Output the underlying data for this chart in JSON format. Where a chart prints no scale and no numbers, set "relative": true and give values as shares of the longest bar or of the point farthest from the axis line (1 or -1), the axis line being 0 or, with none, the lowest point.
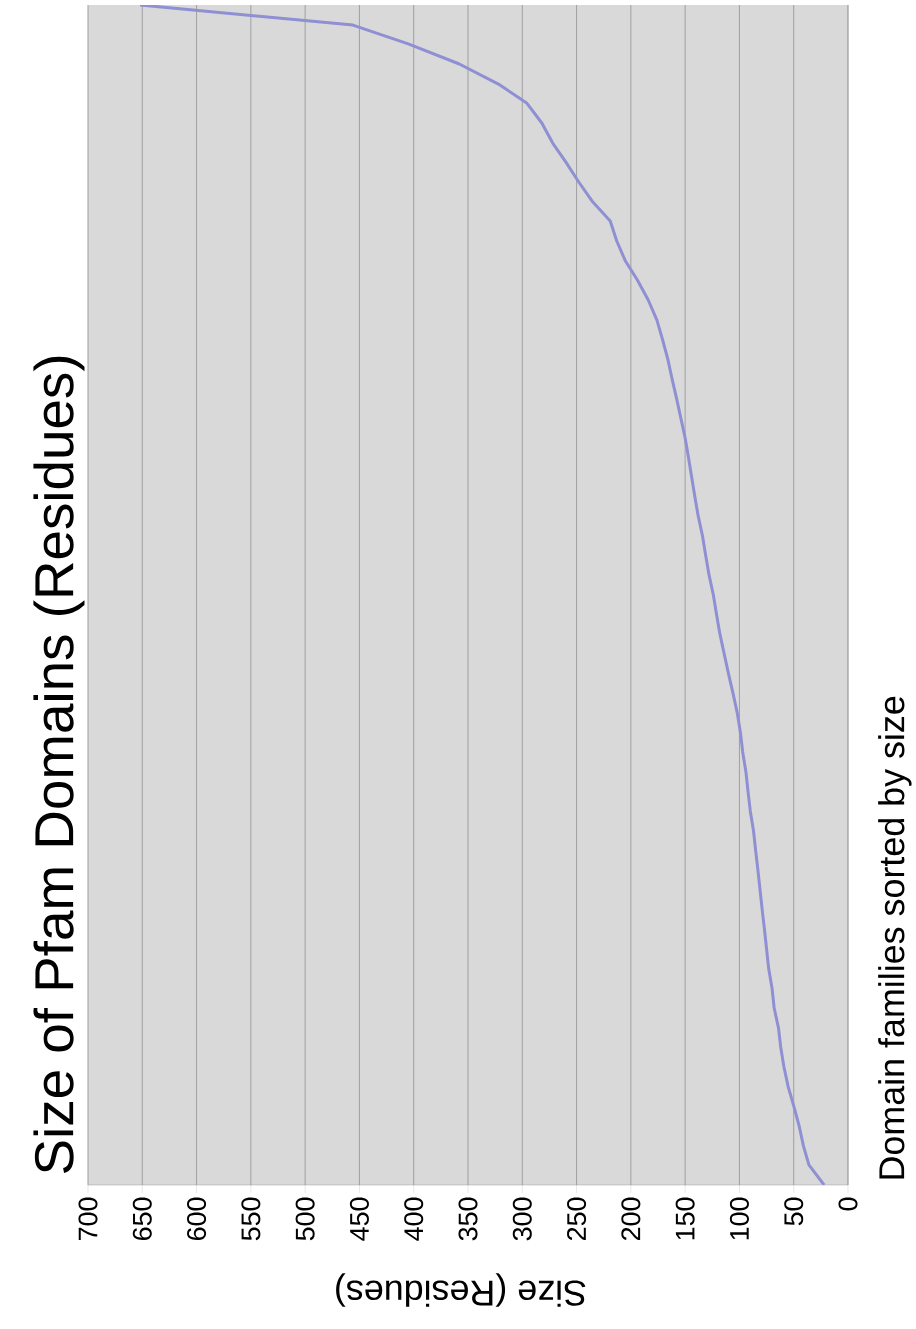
{
  "chart_data": {
    "type": "line",
    "title": "Size of Pfam Domains (Residues)",
    "xlabel": "Size (Residues)",
    "ylabel": "Domain families sorted by size",
    "relative": true,
    "series": [
      {
        "color": "#8f8fd3",
        "x": [
          22,
          36,
          41,
          45,
          50,
          55,
          59,
          62,
          64,
          68,
          70,
          73,
          75,
          77,
          79,
          81,
          83,
          85,
          87,
          90,
          92,
          94,
          97,
          99,
          102,
          106,
          110,
          114,
          118,
          121,
          124,
          128,
          131,
          134,
          138,
          141,
          144,
          147,
          150,
          154,
          158,
          162,
          166,
          171,
          176,
          184,
          194,
          205,
          213,
          219,
          235,
          248,
          260,
          272,
          282,
          296,
          322,
          358,
          405,
          456,
          652
        ],
        "values": [
          0,
          0.017,
          0.033,
          0.05,
          0.067,
          0.083,
          0.1,
          0.117,
          0.133,
          0.15,
          0.167,
          0.183,
          0.2,
          0.217,
          0.233,
          0.25,
          0.267,
          0.283,
          0.3,
          0.317,
          0.333,
          0.35,
          0.367,
          0.383,
          0.4,
          0.417,
          0.433,
          0.45,
          0.467,
          0.483,
          0.5,
          0.517,
          0.533,
          0.55,
          0.567,
          0.583,
          0.6,
          0.617,
          0.633,
          0.65,
          0.667,
          0.683,
          0.7,
          0.717,
          0.733,
          0.75,
          0.767,
          0.783,
          0.8,
          0.817,
          0.833,
          0.85,
          0.867,
          0.883,
          0.9,
          0.917,
          0.933,
          0.95,
          0.967,
          0.983,
          1
        ]
      }
    ],
    "xlim": [
      700,
      0
    ],
    "xticks": [
      0,
      50,
      100,
      150,
      200,
      250,
      300,
      350,
      400,
      450,
      500,
      550,
      600,
      650,
      700
    ],
    "grid": "x",
    "marker": "none",
    "line_style": "solid"
  }
}
